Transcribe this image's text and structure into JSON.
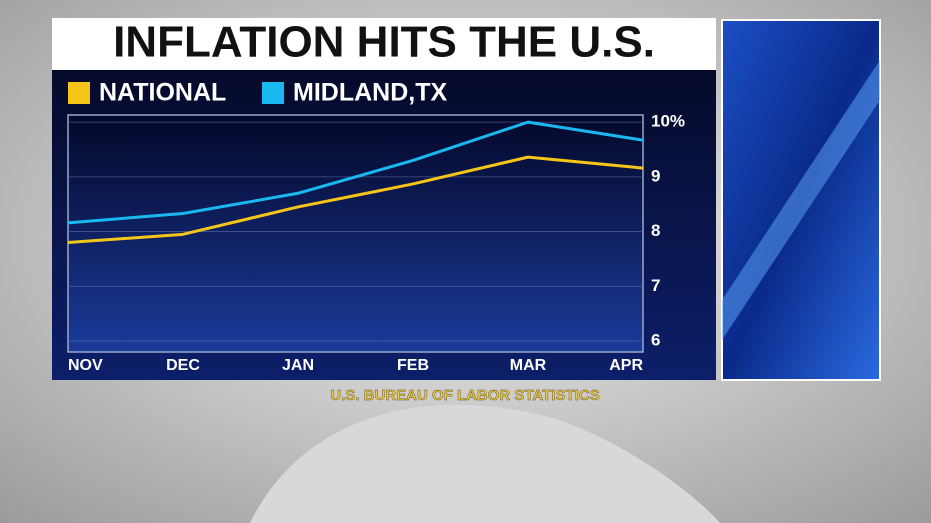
{
  "chart_data": {
    "type": "line",
    "title": "INFLATION HITS THE U.S.",
    "source": "U.S. BUREAU OF LABOR STATISTICS",
    "categories": [
      "NOV",
      "DEC",
      "JAN",
      "FEB",
      "MAR",
      "APR"
    ],
    "series": [
      {
        "name": "NATIONAL",
        "color": "#f5c518",
        "values": [
          7.8,
          7.95,
          8.45,
          8.87,
          9.36,
          9.16
        ]
      },
      {
        "name": "MIDLAND,TX",
        "color": "#1ab8f0",
        "values": [
          8.16,
          8.33,
          8.7,
          9.3,
          10.0,
          9.67
        ]
      }
    ],
    "ylim": [
      5.8,
      10.13
    ],
    "yticks": [
      {
        "value": 10,
        "label": "10%"
      },
      9,
      8,
      7,
      6
    ],
    "grid": true
  }
}
